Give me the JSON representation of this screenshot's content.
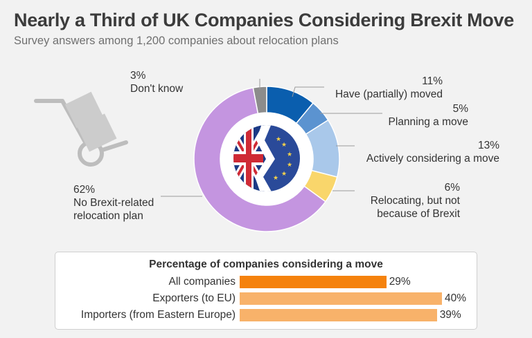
{
  "title": "Nearly a Third of UK Companies Considering Brexit Move",
  "subtitle": "Survey answers among 1,200 companies about relocation plans",
  "chart_data": [
    {
      "type": "pie",
      "variant": "donut",
      "slices": [
        {
          "label": "Have (partially) moved",
          "value": 11,
          "display": "11%",
          "color": "#0a5eae"
        },
        {
          "label": "Planning a move",
          "value": 5,
          "display": "5%",
          "color": "#5b93d0"
        },
        {
          "label": "Actively considering a move",
          "value": 13,
          "display": "13%",
          "color": "#a9c8ea"
        },
        {
          "label": "Relocating, but not because of Brexit",
          "value": 6,
          "display": "6%",
          "color": "#f9d66b"
        },
        {
          "label": "No Brexit-related relocation plan",
          "value": 62,
          "display": "62%",
          "color": "#c495e0"
        },
        {
          "label": "Don't know",
          "value": 3,
          "display": "3%",
          "color": "#8c8c8c"
        }
      ],
      "label_lines": {
        "relocating": [
          "Relocating, but not",
          "because of Brexit"
        ],
        "no_plan": [
          "No Brexit-related",
          "relocation plan"
        ]
      }
    },
    {
      "type": "bar",
      "orientation": "horizontal",
      "title": "Percentage of companies considering a move",
      "categories": [
        "All companies",
        "Exporters (to EU)",
        "Importers (from Eastern Europe)"
      ],
      "values": [
        29,
        40,
        39
      ],
      "value_labels": [
        "29%",
        "40%",
        "39%"
      ],
      "colors": [
        "#f5820d",
        "#f8b26a",
        "#f8b26a"
      ]
    }
  ],
  "decor": {
    "icon": "hand-truck-icon",
    "flag": "brexit-flag-icon",
    "ring_color": "#ffffff"
  }
}
